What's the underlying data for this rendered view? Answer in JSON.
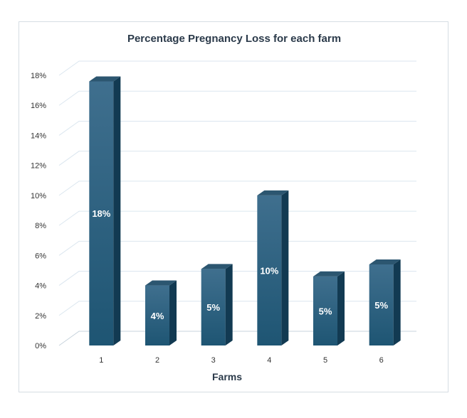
{
  "chart_data": {
    "type": "bar",
    "title": "Percentage Pregnancy Loss for each farm",
    "xlabel": "Farms",
    "ylabel": "",
    "categories": [
      "1",
      "2",
      "3",
      "4",
      "5",
      "6"
    ],
    "values": [
      17.6,
      4.0,
      5.1,
      10.0,
      4.6,
      5.4
    ],
    "data_labels": [
      "18%",
      "4%",
      "5%",
      "10%",
      "5%",
      "5%"
    ],
    "ylim": [
      0,
      18
    ],
    "yticks": [
      "0%",
      "2%",
      "4%",
      "6%",
      "8%",
      "10%",
      "12%",
      "14%",
      "16%",
      "18%"
    ],
    "grid": true,
    "legend": "none",
    "colors": {
      "bar_front_top": "#3f6f8e",
      "bar_front_bottom": "#1e5573",
      "bar_side": "#123a52",
      "bar_top": "#2c5670",
      "grid": "#dbe6ef",
      "axis": "#c7d3dc"
    }
  }
}
